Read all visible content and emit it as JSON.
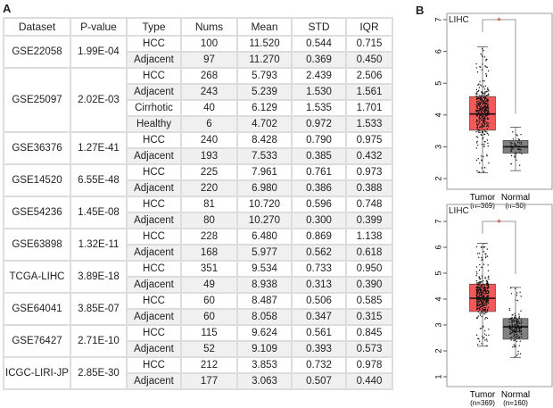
{
  "panel_labels": {
    "a": "A",
    "b": "B"
  },
  "table": {
    "headers": [
      "Dataset",
      "P-value",
      "Type",
      "Nums",
      "Mean",
      "STD",
      "IQR"
    ],
    "groups": [
      {
        "dataset": "GSE22058",
        "pvalue": "1.99E-04",
        "rows": [
          [
            "HCC",
            "100",
            "11.520",
            "0.544",
            "0.715"
          ],
          [
            "Adjacent",
            "97",
            "11.270",
            "0.369",
            "0.450"
          ]
        ]
      },
      {
        "dataset": "GSE25097",
        "pvalue": "2.02E-03",
        "rows": [
          [
            "HCC",
            "268",
            "5.793",
            "2.439",
            "2.506"
          ],
          [
            "Adjacent",
            "243",
            "5.239",
            "1.530",
            "1.561"
          ],
          [
            "Cirrhotic",
            "40",
            "6.129",
            "1.535",
            "1.701"
          ],
          [
            "Healthy",
            "6",
            "4.702",
            "0.972",
            "1.533"
          ]
        ]
      },
      {
        "dataset": "GSE36376",
        "pvalue": "1.27E-41",
        "rows": [
          [
            "HCC",
            "240",
            "8.428",
            "0.790",
            "0.975"
          ],
          [
            "Adjacent",
            "193",
            "7.533",
            "0.385",
            "0.432"
          ]
        ]
      },
      {
        "dataset": "GSE14520",
        "pvalue": "6.55E-48",
        "rows": [
          [
            "HCC",
            "225",
            "7.961",
            "0.761",
            "0.973"
          ],
          [
            "Adjacent",
            "220",
            "6.980",
            "0.386",
            "0.388"
          ]
        ]
      },
      {
        "dataset": "GSE54236",
        "pvalue": "1.45E-08",
        "rows": [
          [
            "HCC",
            "81",
            "10.720",
            "0.596",
            "0.748"
          ],
          [
            "Adjacent",
            "80",
            "10.270",
            "0.300",
            "0.399"
          ]
        ]
      },
      {
        "dataset": "GSE63898",
        "pvalue": "1.32E-11",
        "rows": [
          [
            "HCC",
            "228",
            "6.480",
            "0.869",
            "1.138"
          ],
          [
            "Adjacent",
            "168",
            "5.977",
            "0.562",
            "0.618"
          ]
        ]
      },
      {
        "dataset": "TCGA-LIHC",
        "pvalue": "3.89E-18",
        "rows": [
          [
            "HCC",
            "351",
            "9.534",
            "0.733",
            "0.950"
          ],
          [
            "Adjacent",
            "49",
            "8.938",
            "0.313",
            "0.390"
          ]
        ]
      },
      {
        "dataset": "GSE64041",
        "pvalue": "3.85E-07",
        "rows": [
          [
            "HCC",
            "60",
            "8.487",
            "0.506",
            "0.585"
          ],
          [
            "Adjacent",
            "60",
            "8.058",
            "0.347",
            "0.315"
          ]
        ]
      },
      {
        "dataset": "GSE76427",
        "pvalue": "2.71E-10",
        "rows": [
          [
            "HCC",
            "115",
            "9.624",
            "0.561",
            "0.845"
          ],
          [
            "Adjacent",
            "52",
            "9.109",
            "0.393",
            "0.573"
          ]
        ]
      },
      {
        "dataset": "ICGC-LIRI-JP",
        "pvalue": "2.85E-30",
        "rows": [
          [
            "HCC",
            "212",
            "3.853",
            "0.732",
            "0.978"
          ],
          [
            "Adjacent",
            "177",
            "3.063",
            "0.507",
            "0.440"
          ]
        ]
      }
    ]
  },
  "chart_data": [
    {
      "type": "box",
      "title": "LIHC",
      "significance": "*",
      "ylim": [
        1.8,
        7.1
      ],
      "yticks": [
        2,
        3,
        4,
        5,
        6,
        7
      ],
      "series": [
        {
          "name": "Tumor",
          "n_label": "(n=369)",
          "n": 369,
          "color": "#f25a5a",
          "whisker_low": 2.18,
          "q1": 3.52,
          "median": 4.03,
          "q3": 4.58,
          "whisker_high": 6.15
        },
        {
          "name": "Normal",
          "n_label": "(n=50)",
          "n": 50,
          "color": "#808080",
          "whisker_low": 2.25,
          "q1": 2.8,
          "median": 3.0,
          "q3": 3.2,
          "whisker_high": 3.62
        }
      ]
    },
    {
      "type": "box",
      "title": "LIHC",
      "significance": "*",
      "ylim": [
        0.8,
        7.2
      ],
      "yticks": [
        1,
        2,
        3,
        4,
        5,
        6,
        7
      ],
      "series": [
        {
          "name": "Tumor",
          "n_label": "(n=369)",
          "n": 369,
          "color": "#f25a5a",
          "whisker_low": 2.18,
          "q1": 3.52,
          "median": 4.03,
          "q3": 4.58,
          "whisker_high": 6.15
        },
        {
          "name": "Normal",
          "n_label": "(n=160)",
          "n": 160,
          "color": "#808080",
          "whisker_low": 1.75,
          "q1": 2.45,
          "median": 2.93,
          "q3": 3.25,
          "whisker_high": 4.45
        }
      ]
    }
  ]
}
